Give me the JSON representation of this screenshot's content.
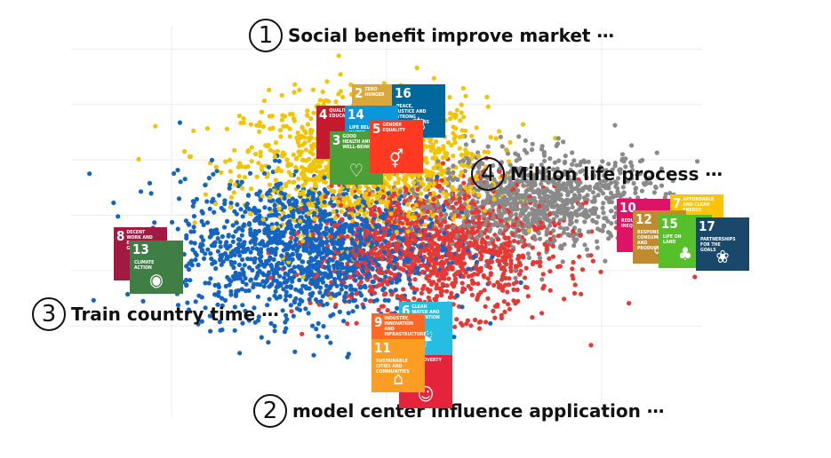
{
  "chart_data": {
    "type": "scatter",
    "title": "",
    "xlabel": "",
    "ylabel": "",
    "grid": true,
    "series": [
      {
        "color": "#F2C300",
        "center": [
          -0.15,
          0.55
        ],
        "spread": [
          0.42,
          0.36
        ],
        "count": 1300
      },
      {
        "color": "#1565C0",
        "center": [
          -0.55,
          -0.35
        ],
        "spread": [
          0.45,
          0.38
        ],
        "count": 1500
      },
      {
        "color": "#E53935",
        "center": [
          0.35,
          -0.35
        ],
        "spread": [
          0.42,
          0.35
        ],
        "count": 1300
      },
      {
        "color": "#8A8A8A",
        "center": [
          1.05,
          0.15
        ],
        "spread": [
          0.45,
          0.25
        ],
        "count": 1100
      }
    ],
    "annotations": [
      {
        "number": "1",
        "text": "Social benefit improve market ⋯"
      },
      {
        "number": "2",
        "text": "model center influence application ⋯"
      },
      {
        "number": "3",
        "text": "Train country time ⋯"
      },
      {
        "number": "4",
        "text": "Million life process ⋯"
      }
    ]
  },
  "sdg_tiles": [
    {
      "id": "t2",
      "num": "2",
      "title": "ZERO HUNGER",
      "color": "#DDA63A",
      "icon": "bowl-icon",
      "glyph": "♨"
    },
    {
      "id": "t16",
      "num": "16",
      "title": "PEACE, JUSTICE AND STRONG INSTITUTIONS",
      "color": "#00689D",
      "icon": "dove-icon",
      "glyph": "⚖"
    },
    {
      "id": "t4",
      "num": "4",
      "title": "QUALITY EDUCATION",
      "color": "#C5192D",
      "icon": "book-icon",
      "glyph": "☰"
    },
    {
      "id": "t14",
      "num": "14",
      "title": "LIFE BELOW WATER",
      "color": "#0A97D9",
      "icon": "fish-icon",
      "glyph": "≈"
    },
    {
      "id": "t3",
      "num": "3",
      "title": "GOOD HEALTH AND WELL-BEING",
      "color": "#4C9F38",
      "icon": "heartbeat-icon",
      "glyph": "♡"
    },
    {
      "id": "t5",
      "num": "5",
      "title": "GENDER EQUALITY",
      "color": "#FF3A21",
      "icon": "gender-icon",
      "glyph": "⚥"
    },
    {
      "id": "t10",
      "num": "10",
      "title": "REDUCED INEQUALITIES",
      "color": "#DD1367",
      "icon": "equality-icon",
      "glyph": "≡"
    },
    {
      "id": "t7",
      "num": "7",
      "title": "AFFORDABLE AND CLEAN ENERGY",
      "color": "#FCC30B",
      "icon": "sun-icon",
      "glyph": "☀"
    },
    {
      "id": "t12",
      "num": "12",
      "title": "RESPONSIBLE CONSUMPTION AND PRODUCTION",
      "color": "#BF8B2E",
      "icon": "loop-icon",
      "glyph": "∞"
    },
    {
      "id": "t15",
      "num": "15",
      "title": "LIFE ON LAND",
      "color": "#56C02B",
      "icon": "tree-icon",
      "glyph": "♣"
    },
    {
      "id": "t17",
      "num": "17",
      "title": "PARTNERSHIPS FOR THE GOALS",
      "color": "#19486A",
      "icon": "flower-icon",
      "glyph": "❀"
    },
    {
      "id": "t8",
      "num": "8",
      "title": "DECENT WORK AND ECONOMIC GROWTH",
      "color": "#A21942",
      "icon": "growth-chart-icon",
      "glyph": "↗"
    },
    {
      "id": "t13",
      "num": "13",
      "title": "CLIMATE ACTION",
      "color": "#3F7E44",
      "icon": "eye-globe-icon",
      "glyph": "◉"
    },
    {
      "id": "t6",
      "num": "6",
      "title": "CLEAN WATER AND SANITATION",
      "color": "#26BDE2",
      "icon": "water-drop-icon",
      "glyph": "☔"
    },
    {
      "id": "t9",
      "num": "9",
      "title": "INDUSTRY, INNOVATION AND INFRASTRUCTURE",
      "color": "#FD6925",
      "icon": "cubes-icon",
      "glyph": "▦"
    },
    {
      "id": "t11",
      "num": "11",
      "title": "SUSTAINABLE CITIES AND COMMUNITIES",
      "color": "#FD9D24",
      "icon": "city-icon",
      "glyph": "⌂"
    },
    {
      "id": "t1",
      "num": "1",
      "title": "NO POVERTY",
      "color": "#E5243B",
      "icon": "family-icon",
      "glyph": "☺"
    }
  ]
}
